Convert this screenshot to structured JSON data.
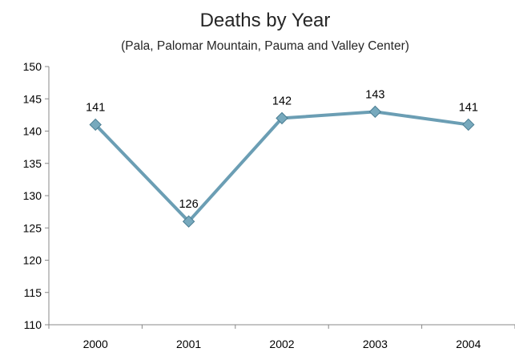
{
  "chart_data": {
    "type": "line",
    "title": "Deaths by Year",
    "subtitle": "(Pala, Palomar Mountain, Pauma and Valley Center)",
    "categories": [
      "2000",
      "2001",
      "2002",
      "2003",
      "2004"
    ],
    "series": [
      {
        "values": [
          141,
          126,
          142,
          143,
          141
        ]
      }
    ],
    "xlabel": "",
    "ylabel": "",
    "ylim": [
      110,
      150
    ],
    "yticks": [
      "110",
      "115",
      "120",
      "125",
      "130",
      "135",
      "140",
      "145",
      "150"
    ],
    "data_labels": [
      "141",
      "126",
      "142",
      "143",
      "141"
    ],
    "grid": false,
    "legend": "none",
    "colors": {
      "line": "#6b9eb4",
      "marker_fill": "#77a9bd",
      "marker_stroke": "#4a7d92",
      "axis": "#888888"
    }
  }
}
